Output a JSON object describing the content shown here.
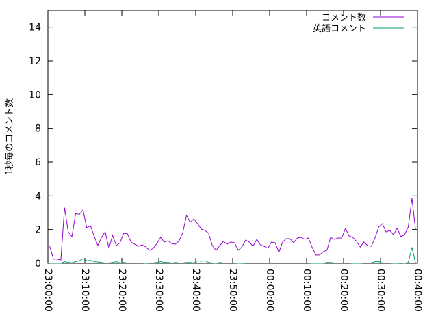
{
  "chart_data": {
    "type": "line",
    "ylabel": "1秒毎のコメント数",
    "xlabel": "",
    "ylim": [
      0,
      15
    ],
    "xlim": [
      "23:00:00",
      "00:40:00"
    ],
    "yticks": [
      "0",
      "2",
      "4",
      "6",
      "8",
      "10",
      "12",
      "14"
    ],
    "xticks": [
      "23:00:00",
      "23:10:00",
      "23:20:00",
      "23:30:00",
      "23:40:00",
      "23:50:00",
      "00:00:00",
      "00:10:00",
      "00:20:00",
      "00:30:00",
      "00:40:00"
    ],
    "grid": false,
    "legend_position": "top-right",
    "x": [
      "23:00:30",
      "23:01:30",
      "23:02:30",
      "23:03:30",
      "23:04:30",
      "23:05:30",
      "23:06:30",
      "23:07:30",
      "23:08:30",
      "23:09:30",
      "23:10:30",
      "23:11:30",
      "23:12:30",
      "23:13:30",
      "23:14:30",
      "23:15:30",
      "23:16:30",
      "23:17:30",
      "23:18:30",
      "23:19:30",
      "23:20:30",
      "23:21:30",
      "23:22:30",
      "23:23:30",
      "23:24:30",
      "23:25:30",
      "23:26:30",
      "23:27:30",
      "23:28:30",
      "23:29:30",
      "23:30:30",
      "23:31:30",
      "23:32:30",
      "23:33:30",
      "23:34:30",
      "23:35:30",
      "23:36:30",
      "23:37:30",
      "23:38:30",
      "23:39:30",
      "23:40:30",
      "23:41:30",
      "23:42:30",
      "23:43:30",
      "23:44:30",
      "23:45:30",
      "23:46:30",
      "23:47:30",
      "23:48:30",
      "23:49:30",
      "23:50:30",
      "23:51:30",
      "23:52:30",
      "23:53:30",
      "23:54:30",
      "23:55:30",
      "23:56:30",
      "23:57:30",
      "23:58:30",
      "23:59:30",
      "00:00:30",
      "00:01:30",
      "00:02:30",
      "00:03:30",
      "00:04:30",
      "00:05:30",
      "00:06:30",
      "00:07:30",
      "00:08:30",
      "00:09:30",
      "00:10:30",
      "00:11:30",
      "00:12:30",
      "00:13:30",
      "00:14:30",
      "00:15:30",
      "00:16:30",
      "00:17:30",
      "00:18:30",
      "00:19:30",
      "00:20:30",
      "00:21:30",
      "00:22:30",
      "00:23:30",
      "00:24:30",
      "00:25:30",
      "00:26:30",
      "00:27:30",
      "00:28:30",
      "00:29:30",
      "00:30:30",
      "00:31:30",
      "00:32:30",
      "00:33:30",
      "00:34:30",
      "00:35:30",
      "00:36:30",
      "00:37:30",
      "00:38:30",
      "00:39:30"
    ],
    "series": [
      {
        "name": "コメント数",
        "color": "#9400d3",
        "values": [
          1.0,
          0.25,
          0.25,
          0.2,
          3.3,
          1.86,
          1.58,
          2.95,
          2.9,
          3.17,
          2.1,
          2.23,
          1.62,
          1.05,
          1.54,
          1.86,
          0.89,
          1.66,
          1.05,
          1.22,
          1.78,
          1.75,
          1.26,
          1.13,
          1.01,
          1.09,
          0.97,
          0.77,
          0.89,
          1.17,
          1.54,
          1.26,
          1.34,
          1.17,
          1.13,
          1.34,
          1.82,
          2.84,
          2.43,
          2.63,
          2.35,
          2.03,
          1.95,
          1.78,
          1.05,
          0.77,
          1.05,
          1.3,
          1.13,
          1.26,
          1.22,
          0.77,
          0.97,
          1.38,
          1.26,
          1.01,
          1.42,
          1.09,
          1.01,
          0.89,
          1.26,
          1.22,
          0.65,
          1.26,
          1.46,
          1.46,
          1.22,
          1.5,
          1.54,
          1.42,
          1.5,
          0.95,
          0.49,
          0.49,
          0.69,
          0.77,
          1.54,
          1.42,
          1.5,
          1.5,
          2.07,
          1.62,
          1.54,
          1.3,
          0.97,
          1.26,
          1.05,
          1.01,
          1.5,
          2.15,
          2.35,
          1.86,
          1.95,
          1.7,
          2.07,
          1.58,
          1.7,
          2.15,
          3.85,
          1.95
        ]
      },
      {
        "name": "英語コメント",
        "color": "#009e73",
        "values": [
          0,
          0,
          0,
          0,
          0.1,
          0.05,
          0.03,
          0.1,
          0.15,
          0.28,
          0.15,
          0.18,
          0.1,
          0.08,
          0.05,
          0.02,
          0.02,
          0.05,
          0.1,
          0.02,
          0.05,
          0.02,
          0.02,
          0.02,
          0.02,
          0.02,
          0,
          0.02,
          0.02,
          0.05,
          0.1,
          0.05,
          0.05,
          0.02,
          0.05,
          0.02,
          0.02,
          0.05,
          0.05,
          0.02,
          0.15,
          0.12,
          0.15,
          0.05,
          0.02,
          0,
          0.05,
          0.02,
          0.02,
          0.02,
          0.02,
          0,
          0,
          0.02,
          0.02,
          0.02,
          0.02,
          0.02,
          0.02,
          0.02,
          0.02,
          0.02,
          0.02,
          0.02,
          0.02,
          0.02,
          0.02,
          0.02,
          0.02,
          0.02,
          0.02,
          0,
          0,
          0,
          0,
          0.05,
          0.05,
          0.02,
          0.02,
          0.02,
          0.02,
          0.02,
          0,
          0,
          0,
          0.02,
          0.02,
          0.02,
          0.1,
          0.1,
          0.02,
          0.02,
          0.02,
          0,
          0,
          0.02,
          0,
          0.05,
          0.95,
          0
        ]
      }
    ]
  }
}
